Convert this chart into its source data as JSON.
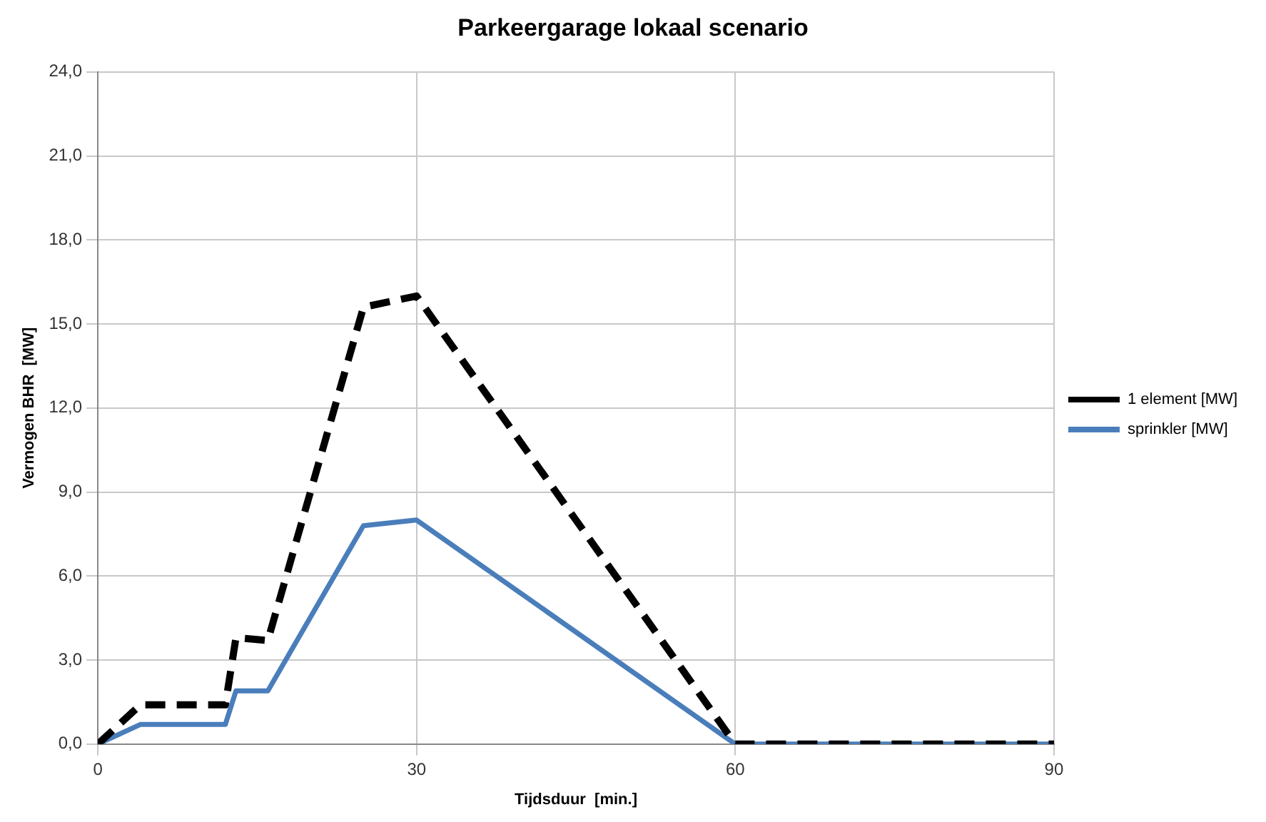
{
  "chart_data": {
    "type": "line",
    "title": "Parkeergarage lokaal scenario",
    "xlabel": "Tijdsduur  [min.]",
    "ylabel": "Vermogen BHR  [MW]",
    "x": [
      0,
      4,
      12,
      13,
      16,
      25,
      30,
      60,
      90
    ],
    "series": [
      {
        "name": "1 element [MW]",
        "color": "#000000",
        "line_style": "dashed",
        "values": [
          0,
          1.4,
          1.4,
          3.8,
          3.7,
          15.6,
          16,
          0,
          0
        ]
      },
      {
        "name": "sprinkler [MW]",
        "color": "#4a7ebb",
        "line_style": "solid",
        "values": [
          0,
          0.7,
          0.7,
          1.9,
          1.9,
          7.8,
          8,
          0,
          0
        ]
      }
    ],
    "xlim": [
      0,
      90
    ],
    "xticks": [
      0,
      30,
      60,
      90
    ],
    "ylim": [
      0,
      24
    ],
    "yticks": [
      {
        "value": 0,
        "label": "0,0"
      },
      {
        "value": 3,
        "label": "3,0"
      },
      {
        "value": 6,
        "label": "6,0"
      },
      {
        "value": 9,
        "label": "9,0"
      },
      {
        "value": 12,
        "label": "12,0"
      },
      {
        "value": 15,
        "label": "15,0"
      },
      {
        "value": 18,
        "label": "18,0"
      },
      {
        "value": 21,
        "label": "21,0"
      },
      {
        "value": 24,
        "label": "24,0"
      }
    ],
    "grid": true,
    "legend": "right",
    "marker": "none"
  }
}
